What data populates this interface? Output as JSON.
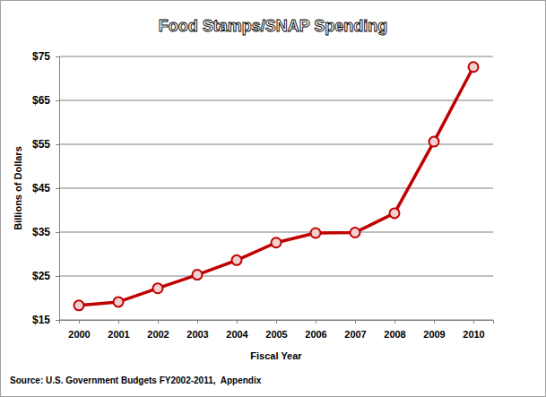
{
  "chart_data": {
    "type": "line",
    "title": "Food Stamps/SNAP Spending",
    "x_label": "Fiscal Year",
    "y_label": "Billions of Dollars",
    "source": "Source: U.S. Government Budgets FY2002-2011,  Appendix",
    "categories": [
      "2000",
      "2001",
      "2002",
      "2003",
      "2004",
      "2005",
      "2006",
      "2007",
      "2008",
      "2009",
      "2010"
    ],
    "values": [
      18.3,
      19.1,
      22.2,
      25.3,
      28.6,
      32.6,
      34.8,
      34.9,
      39.3,
      55.6,
      72.6
    ],
    "color": "#c00000",
    "marker": "circle",
    "ylim": [
      15,
      75
    ],
    "yticks": [
      {
        "value": 15,
        "label": "$15"
      },
      {
        "value": 25,
        "label": "$25"
      },
      {
        "value": 35,
        "label": "$35"
      },
      {
        "value": 45,
        "label": "$45"
      },
      {
        "value": 55,
        "label": "$55"
      },
      {
        "value": 65,
        "label": "$65"
      },
      {
        "value": 75,
        "label": "$75"
      }
    ],
    "grid": true
  }
}
